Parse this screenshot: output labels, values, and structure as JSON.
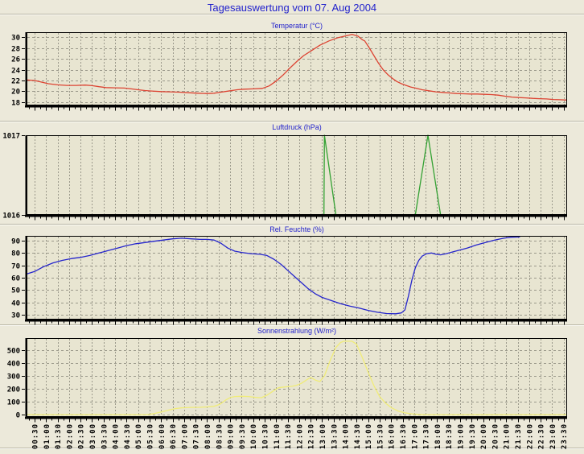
{
  "page": {
    "title": "Tagesauswertung vom 07. Aug 2004",
    "title_color": "#2222cc",
    "background": "#ece9da",
    "plot_background": "#e8e5d1",
    "grid_color": "#9b998b",
    "axis_color": "#000000"
  },
  "x_axis": {
    "range": [
      0.15,
      23.65
    ],
    "first_tick": 0.5,
    "tick_step": 0.5,
    "tick_labels": [
      "00:30",
      "01:00",
      "01:30",
      "02:00",
      "02:30",
      "03:00",
      "03:30",
      "04:00",
      "04:30",
      "05:00",
      "05:30",
      "06:00",
      "06:30",
      "07:00",
      "07:30",
      "08:00",
      "08:30",
      "09:00",
      "09:30",
      "10:00",
      "10:30",
      "11:00",
      "11:30",
      "12:00",
      "12:30",
      "13:00",
      "13:30",
      "14:00",
      "14:30",
      "15:00",
      "15:30",
      "16:00",
      "16:30",
      "17:00",
      "17:30",
      "18:00",
      "18:30",
      "19:00",
      "19:30",
      "20:00",
      "20:30",
      "21:00",
      "21:30",
      "22:00",
      "22:30",
      "23:00",
      "23:30"
    ]
  },
  "chart_data": [
    {
      "id": "temperatur",
      "type": "line",
      "title": "Temperatur (°C)",
      "grid": true,
      "legend": "none",
      "y_axis": {
        "ticks": [
          18,
          20,
          22,
          24,
          26,
          28,
          30
        ],
        "range": [
          17.4,
          30.9
        ]
      },
      "series": [
        {
          "name": "Temperatur",
          "color": "#dd4433",
          "points": [
            [
              0.15,
              22.1
            ],
            [
              0.5,
              22.0
            ],
            [
              0.8,
              21.7
            ],
            [
              1.1,
              21.4
            ],
            [
              1.5,
              21.2
            ],
            [
              1.9,
              21.1
            ],
            [
              2.3,
              21.1
            ],
            [
              2.7,
              21.15
            ],
            [
              3.0,
              21.05
            ],
            [
              3.3,
              20.85
            ],
            [
              3.6,
              20.7
            ],
            [
              4.0,
              20.65
            ],
            [
              4.4,
              20.6
            ],
            [
              4.7,
              20.45
            ],
            [
              5.0,
              20.3
            ],
            [
              5.3,
              20.15
            ],
            [
              5.6,
              20.05
            ],
            [
              6.0,
              19.95
            ],
            [
              6.4,
              19.9
            ],
            [
              6.8,
              19.85
            ],
            [
              7.2,
              19.75
            ],
            [
              7.6,
              19.65
            ],
            [
              8.0,
              19.6
            ],
            [
              8.3,
              19.65
            ],
            [
              8.6,
              19.85
            ],
            [
              9.0,
              20.1
            ],
            [
              9.3,
              20.3
            ],
            [
              9.6,
              20.4
            ],
            [
              10.0,
              20.45
            ],
            [
              10.4,
              20.55
            ],
            [
              10.7,
              21.0
            ],
            [
              11.0,
              21.9
            ],
            [
              11.3,
              23.0
            ],
            [
              11.6,
              24.3
            ],
            [
              11.9,
              25.5
            ],
            [
              12.2,
              26.6
            ],
            [
              12.5,
              27.4
            ],
            [
              12.9,
              28.5
            ],
            [
              13.3,
              29.3
            ],
            [
              13.7,
              29.9
            ],
            [
              14.0,
              30.2
            ],
            [
              14.3,
              30.5
            ],
            [
              14.55,
              30.2
            ],
            [
              14.75,
              29.5
            ],
            [
              14.85,
              29.3
            ],
            [
              15.05,
              28.0
            ],
            [
              15.25,
              26.6
            ],
            [
              15.45,
              25.2
            ],
            [
              15.65,
              24.0
            ],
            [
              15.85,
              23.1
            ],
            [
              16.05,
              22.4
            ],
            [
              16.25,
              21.8
            ],
            [
              16.45,
              21.4
            ],
            [
              16.65,
              21.1
            ],
            [
              16.85,
              20.8
            ],
            [
              17.05,
              20.6
            ],
            [
              17.35,
              20.3
            ],
            [
              17.65,
              20.1
            ],
            [
              17.95,
              19.9
            ],
            [
              18.25,
              19.8
            ],
            [
              18.55,
              19.7
            ],
            [
              18.85,
              19.6
            ],
            [
              19.15,
              19.55
            ],
            [
              19.45,
              19.5
            ],
            [
              19.75,
              19.5
            ],
            [
              20.05,
              19.45
            ],
            [
              20.35,
              19.4
            ],
            [
              20.65,
              19.3
            ],
            [
              20.95,
              19.1
            ],
            [
              21.25,
              18.95
            ],
            [
              21.55,
              18.85
            ],
            [
              21.85,
              18.8
            ],
            [
              22.15,
              18.7
            ],
            [
              22.45,
              18.65
            ],
            [
              22.75,
              18.6
            ],
            [
              23.05,
              18.5
            ],
            [
              23.35,
              18.45
            ],
            [
              23.65,
              18.4
            ]
          ]
        }
      ]
    },
    {
      "id": "luftdruck",
      "type": "line",
      "title": "Luftdruck (hPa)",
      "grid": true,
      "legend": "none",
      "y_axis": {
        "ticks": [
          1016,
          1017
        ],
        "range": [
          1016,
          1017
        ]
      },
      "series": [
        {
          "name": "Luftdruck",
          "color": "#33a133",
          "points": [
            [
              0.15,
              1016
            ],
            [
              13.08,
              1016
            ],
            [
              13.1,
              1017
            ],
            [
              13.6,
              1016
            ],
            [
              17.05,
              1016
            ],
            [
              17.6,
              1017
            ],
            [
              18.15,
              1016
            ],
            [
              23.65,
              1016
            ]
          ]
        }
      ]
    },
    {
      "id": "feuchte",
      "type": "line",
      "title": "Rel. Feuchte (%)",
      "grid": true,
      "legend": "none",
      "y_axis": {
        "ticks": [
          30,
          40,
          50,
          60,
          70,
          80,
          90
        ],
        "range": [
          26.1,
          93.9
        ]
      },
      "series": [
        {
          "name": "Rel. Feuchte",
          "color": "#2525cc",
          "points": [
            [
              0.15,
              63
            ],
            [
              0.5,
              65
            ],
            [
              0.9,
              69
            ],
            [
              1.3,
              72
            ],
            [
              1.7,
              74
            ],
            [
              2.1,
              75.5
            ],
            [
              2.5,
              76.5
            ],
            [
              2.9,
              78
            ],
            [
              3.3,
              80
            ],
            [
              3.7,
              82
            ],
            [
              4.1,
              84
            ],
            [
              4.5,
              86
            ],
            [
              4.9,
              87.5
            ],
            [
              5.3,
              88.5
            ],
            [
              5.7,
              89.5
            ],
            [
              6.1,
              90.5
            ],
            [
              6.5,
              91.5
            ],
            [
              6.9,
              92
            ],
            [
              7.3,
              91.5
            ],
            [
              7.7,
              91
            ],
            [
              8.0,
              91
            ],
            [
              8.3,
              90.5
            ],
            [
              8.6,
              88
            ],
            [
              8.9,
              84
            ],
            [
              9.2,
              81.5
            ],
            [
              9.5,
              80.5
            ],
            [
              9.9,
              79.5
            ],
            [
              10.3,
              79
            ],
            [
              10.6,
              78
            ],
            [
              10.9,
              75
            ],
            [
              11.2,
              71
            ],
            [
              11.5,
              66
            ],
            [
              11.8,
              61
            ],
            [
              12.1,
              56
            ],
            [
              12.4,
              51
            ],
            [
              12.7,
              47
            ],
            [
              13.0,
              44
            ],
            [
              13.4,
              41.5
            ],
            [
              13.8,
              39
            ],
            [
              14.2,
              37
            ],
            [
              14.6,
              35.5
            ],
            [
              15.0,
              33.5
            ],
            [
              15.4,
              32
            ],
            [
              15.8,
              31
            ],
            [
              16.2,
              30.8
            ],
            [
              16.45,
              31.5
            ],
            [
              16.6,
              34
            ],
            [
              16.75,
              45
            ],
            [
              16.9,
              58
            ],
            [
              17.05,
              68
            ],
            [
              17.2,
              74
            ],
            [
              17.35,
              77.5
            ],
            [
              17.55,
              79.5
            ],
            [
              17.75,
              80
            ],
            [
              17.95,
              79
            ],
            [
              18.15,
              78.5
            ],
            [
              18.4,
              79.5
            ],
            [
              18.7,
              81
            ],
            [
              19.0,
              82.5
            ],
            [
              19.3,
              84
            ],
            [
              19.7,
              86.5
            ],
            [
              20.1,
              88.5
            ],
            [
              20.5,
              90.5
            ],
            [
              20.9,
              92
            ],
            [
              21.2,
              92.8
            ],
            [
              21.6,
              93
            ]
          ]
        }
      ]
    },
    {
      "id": "sonnenstrahlung",
      "type": "line",
      "title": "Sonnenstrahlung (W/m²)",
      "grid": true,
      "legend": "none",
      "y_axis": {
        "ticks": [
          0,
          100,
          200,
          300,
          400,
          500
        ],
        "range": [
          -18,
          592
        ]
      },
      "series": [
        {
          "name": "Sonnenstrahlung",
          "color": "#f0ec78",
          "points": [
            [
              0.15,
              0
            ],
            [
              5.4,
              0
            ],
            [
              5.7,
              8
            ],
            [
              6.0,
              20
            ],
            [
              6.3,
              34
            ],
            [
              6.6,
              46
            ],
            [
              6.9,
              53
            ],
            [
              7.3,
              56
            ],
            [
              7.7,
              57
            ],
            [
              8.0,
              60
            ],
            [
              8.3,
              64
            ],
            [
              8.55,
              80
            ],
            [
              8.8,
              112
            ],
            [
              9.0,
              132
            ],
            [
              9.2,
              140
            ],
            [
              9.5,
              142
            ],
            [
              9.8,
              140
            ],
            [
              10.1,
              133
            ],
            [
              10.35,
              131
            ],
            [
              10.6,
              150
            ],
            [
              10.85,
              180
            ],
            [
              11.1,
              208
            ],
            [
              11.4,
              215
            ],
            [
              11.7,
              219
            ],
            [
              11.9,
              228
            ],
            [
              12.1,
              242
            ],
            [
              12.3,
              266
            ],
            [
              12.5,
              288
            ],
            [
              12.7,
              268
            ],
            [
              12.9,
              256
            ],
            [
              13.1,
              300
            ],
            [
              13.35,
              420
            ],
            [
              13.6,
              520
            ],
            [
              13.8,
              558
            ],
            [
              13.95,
              568
            ],
            [
              14.3,
              568
            ],
            [
              14.5,
              545
            ],
            [
              14.75,
              440
            ],
            [
              15.0,
              330
            ],
            [
              15.25,
              225
            ],
            [
              15.5,
              140
            ],
            [
              15.75,
              90
            ],
            [
              16.0,
              55
            ],
            [
              16.3,
              28
            ],
            [
              16.6,
              14
            ],
            [
              16.9,
              6
            ],
            [
              17.2,
              2
            ],
            [
              17.45,
              0
            ],
            [
              23.65,
              0
            ]
          ]
        }
      ]
    }
  ]
}
